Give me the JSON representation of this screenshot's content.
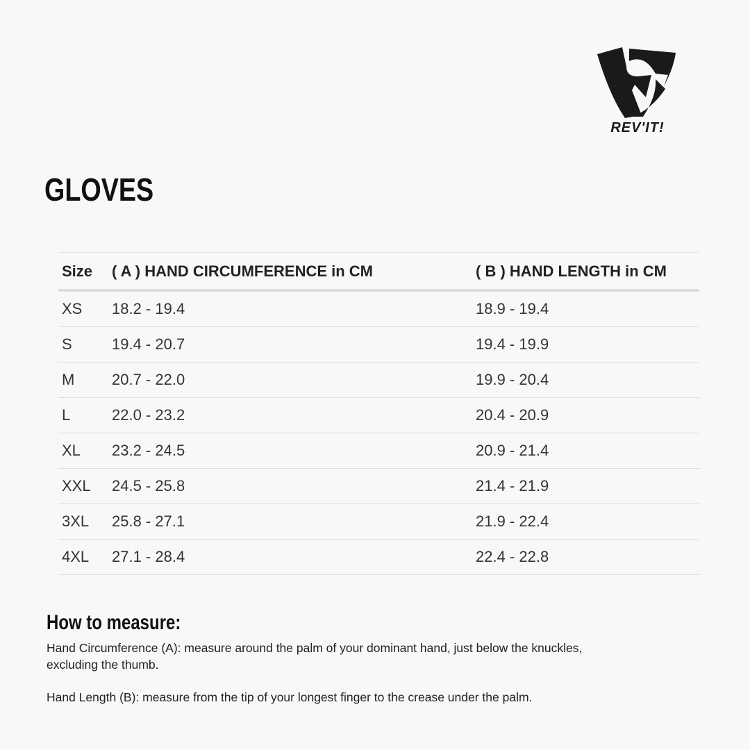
{
  "brand": {
    "logo_text": "REV'IT!"
  },
  "title": "GLOVES",
  "table": {
    "headers": [
      "Size",
      "( A ) HAND CIRCUMFERENCE in CM",
      "( B ) HAND LENGTH in CM"
    ],
    "rows": [
      [
        "XS",
        "18.2 - 19.4",
        "18.9 - 19.4"
      ],
      [
        "S",
        "19.4 - 20.7",
        "19.4 - 19.9"
      ],
      [
        "M",
        "20.7 - 22.0",
        "19.9 - 20.4"
      ],
      [
        "L",
        "22.0 - 23.2",
        "20.4 - 20.9"
      ],
      [
        "XL",
        "23.2 - 24.5",
        "20.9 - 21.4"
      ],
      [
        "XXL",
        "24.5 - 25.8",
        "21.4 - 21.9"
      ],
      [
        "3XL",
        "25.8 - 27.1",
        "21.9 - 22.4"
      ],
      [
        "4XL",
        "27.1 - 28.4",
        "22.4 - 22.8"
      ]
    ]
  },
  "how_to_measure": {
    "heading": "How to measure:",
    "circumference": "Hand Circumference (A): measure around the palm of your dominant hand, just below the knuckles, excluding the thumb.",
    "length": "Hand Length (B): measure from the tip of your longest finger to the crease under the palm."
  }
}
